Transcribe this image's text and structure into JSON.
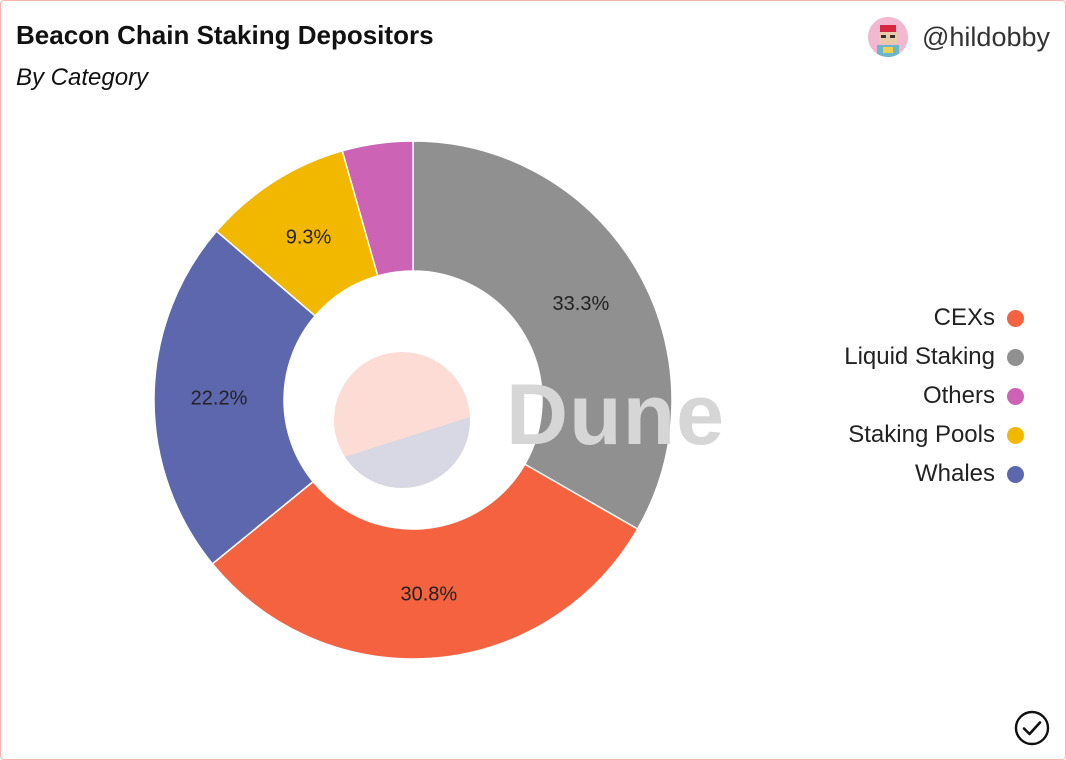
{
  "header": {
    "title": "Beacon Chain Staking Depositors",
    "subtitle": "By Category",
    "author": "@hildobby"
  },
  "watermark": "Dune",
  "colors": {
    "CEXs": "#f4623f",
    "Liquid Staking": "#909090",
    "Others": "#cc63b4",
    "Staking Pools": "#f2b800",
    "Whales": "#5d67ae"
  },
  "icons": {
    "avatar": "avatar-icon",
    "verified": "check-circle-icon"
  },
  "chart_data": {
    "type": "pie",
    "title": "Beacon Chain Staking Depositors",
    "subtitle": "By Category",
    "donut": true,
    "legend_position": "right",
    "slices": [
      {
        "name": "Liquid Staking",
        "value": 33.3,
        "label": "33.3%",
        "color": "#909090"
      },
      {
        "name": "CEXs",
        "value": 30.8,
        "label": "30.8%",
        "color": "#f4623f"
      },
      {
        "name": "Whales",
        "value": 22.2,
        "label": "22.2%",
        "color": "#5d67ae"
      },
      {
        "name": "Staking Pools",
        "value": 9.3,
        "label": "9.3%",
        "color": "#f2b800"
      },
      {
        "name": "Others",
        "value": 4.4,
        "label": "",
        "color": "#cc63b4"
      }
    ],
    "legend": [
      "CEXs",
      "Liquid Staking",
      "Others",
      "Staking Pools",
      "Whales"
    ]
  }
}
